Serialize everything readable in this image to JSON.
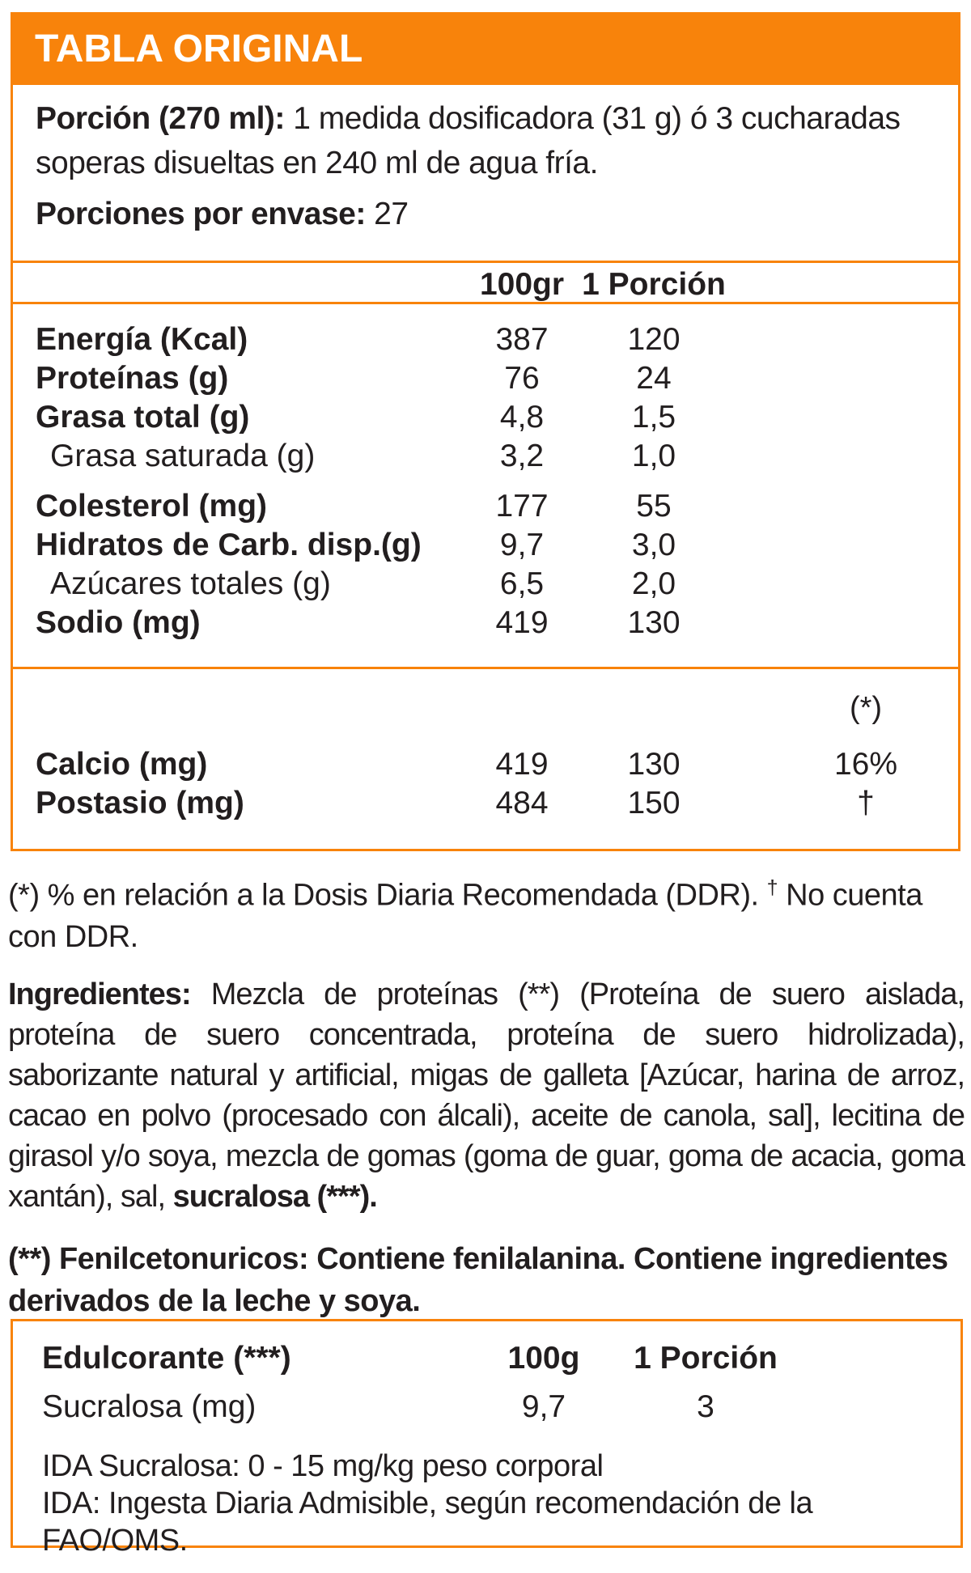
{
  "colors": {
    "accent": "#F8830B",
    "text": "#221E1F",
    "title_text": "#FFFFFF"
  },
  "header": {
    "title": "TABLA ORIGINAL"
  },
  "serving": {
    "label": "Porción (270 ml):",
    "text": "1 medida dosificadora (31 g) ó 3 cucharadas soperas disueltas en 240 ml de agua fría.",
    "servings_label": "Porciones por envase:",
    "servings_value": "27"
  },
  "nutrition_table": {
    "col_headers": [
      "100gr",
      "1 Porción"
    ],
    "rows": [
      {
        "label": "Energía (Kcal)",
        "per_100g": "387",
        "per_serving": "120"
      },
      {
        "label": "Proteínas (g)",
        "per_100g": "76",
        "per_serving": "24"
      },
      {
        "label": "Grasa total (g)",
        "per_100g": "4,8",
        "per_serving": "1,5"
      },
      {
        "label": "Grasa saturada (g)",
        "per_100g": "3,2",
        "per_serving": "1,0"
      },
      {
        "label": "Colesterol (mg)",
        "per_100g": "177",
        "per_serving": "55"
      },
      {
        "label": "Hidratos de Carb. disp.(g)",
        "per_100g": "9,7",
        "per_serving": "3,0"
      },
      {
        "label": "Azúcares totales (g)",
        "per_100g": "6,5",
        "per_serving": "2,0"
      },
      {
        "label": "Sodio (mg)",
        "per_100g": "419",
        "per_serving": "130"
      }
    ]
  },
  "minerals_table": {
    "ddr_header": "(*)",
    "rows": [
      {
        "label": "Calcio (mg)",
        "per_100g": "419",
        "per_serving": "130",
        "ddr": "16%"
      },
      {
        "label": "Postasio (mg)",
        "per_100g": "484",
        "per_serving": "150",
        "ddr": "†"
      }
    ]
  },
  "ddr_note": {
    "prefix": "(*) % en relación a la Dosis Diaria Recomendada (DDR).",
    "dagger": "†",
    "suffix": "No cuenta con DDR."
  },
  "ingredients": {
    "label": "Ingredientes:",
    "body": " Mezcla de proteínas (**) (Proteína de suero aislada, proteína de suero concentrada, proteína de suero hidrolizada), saborizante natural y artificial, migas de galleta [Azúcar, harina de arroz, cacao en polvo (procesado con álcali), aceite de canola, sal], lecitina de girasol y/o soya, mezcla de gomas (goma de guar, goma de acacia, goma xantán), sal, ",
    "bold_end": "sucralosa (***)."
  },
  "phenyl_note": "(**) Fenilcetonuricos: Contiene fenilalanina. Contiene ingredientes derivados de la leche y soya.",
  "sweetener_table": {
    "title": "Edulcorante (***)",
    "col_headers": [
      "100g",
      "1 Porción"
    ],
    "rows": [
      {
        "label": "Sucralosa (mg)",
        "per_100g": "9,7",
        "per_serving": "3"
      }
    ],
    "ida_line1": "IDA Sucralosa: 0 - 15 mg/kg peso corporal",
    "ida_line2": "IDA: Ingesta Diaria Admisible, según recomendación de la FAO/OMS."
  }
}
